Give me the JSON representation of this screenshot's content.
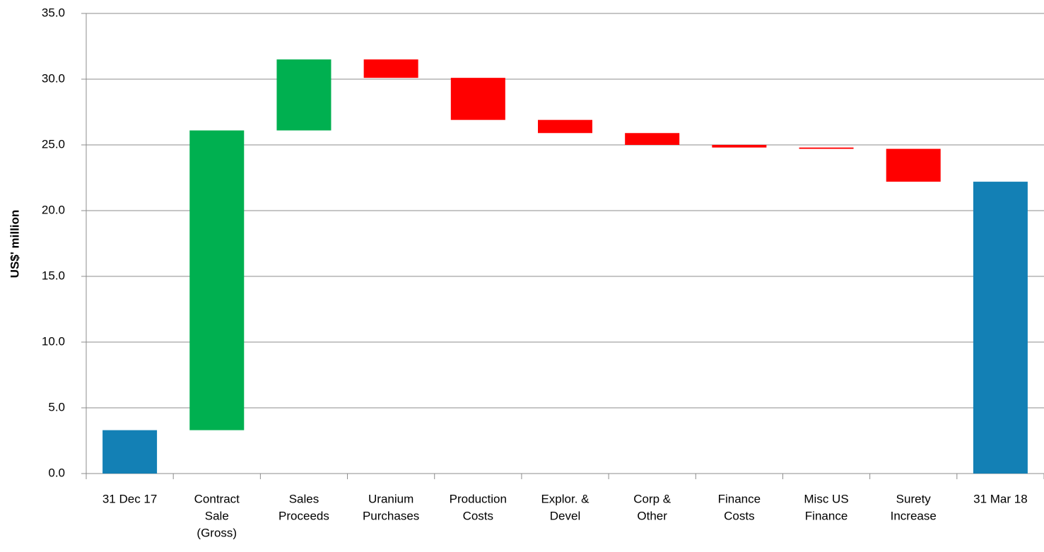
{
  "chart_data": {
    "type": "waterfall",
    "y_label": "US$' million",
    "categories": [
      [
        "31 Dec 17"
      ],
      [
        "Contract",
        "Sale",
        "(Gross)"
      ],
      [
        "Sales",
        "Proceeds"
      ],
      [
        "Uranium",
        "Purchases"
      ],
      [
        "Production",
        "Costs"
      ],
      [
        "Explor. &",
        "Devel"
      ],
      [
        "Corp &",
        "Other"
      ],
      [
        "Finance",
        "Costs"
      ],
      [
        "Misc US",
        "Finance"
      ],
      [
        "Surety",
        "Increase"
      ],
      [
        "31 Mar 18"
      ]
    ],
    "values": [
      3.3,
      22.8,
      5.4,
      -1.4,
      -3.2,
      -1.0,
      -0.9,
      -0.2,
      -0.1,
      -2.5,
      22.2
    ],
    "is_total": [
      true,
      false,
      false,
      false,
      false,
      false,
      false,
      false,
      false,
      false,
      true
    ],
    "colors": [
      "#1380b5",
      "#00b050",
      "#00b050",
      "#ff0000",
      "#ff0000",
      "#ff0000",
      "#ff0000",
      "#ff0000",
      "#ff0000",
      "#ff0000",
      "#1380b5"
    ],
    "ylim": [
      0,
      35
    ],
    "yticks": [
      {
        "value": 0,
        "label": "0.0"
      },
      {
        "value": 5,
        "label": "5.0"
      },
      {
        "value": 10,
        "label": "10.0"
      },
      {
        "value": 15,
        "label": "15.0"
      },
      {
        "value": 20,
        "label": "20.0"
      },
      {
        "value": 25,
        "label": "25.0"
      },
      {
        "value": 30,
        "label": "30.0"
      },
      {
        "value": 35,
        "label": "35.0"
      }
    ],
    "grid": true
  }
}
